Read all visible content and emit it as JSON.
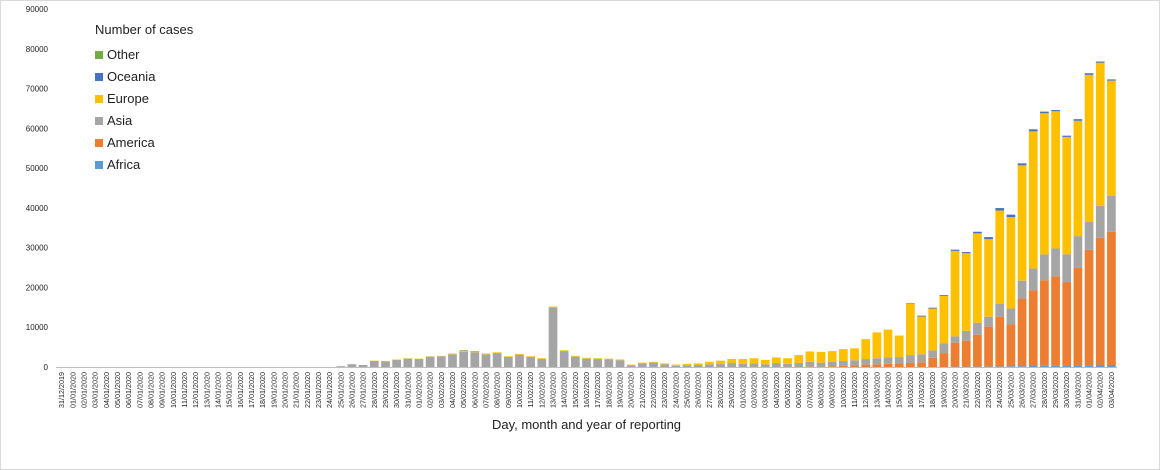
{
  "chart_data": {
    "type": "bar",
    "stacked": true,
    "title": "",
    "xlabel": "Day, month and year of reporting",
    "ylabel": "",
    "ylim": [
      0,
      90000
    ],
    "y_ticks": [
      0,
      10000,
      20000,
      30000,
      40000,
      50000,
      60000,
      70000,
      80000,
      90000
    ],
    "grid": false,
    "legend_title": "Number of cases",
    "legend_position": "top-left",
    "legend_order": [
      "Other",
      "Oceania",
      "Europe",
      "Asia",
      "America",
      "Africa"
    ],
    "categories": [
      "31/12/2019",
      "01/01/2020",
      "02/01/2020",
      "03/01/2020",
      "04/01/2020",
      "05/01/2020",
      "06/01/2020",
      "07/01/2020",
      "08/01/2020",
      "09/01/2020",
      "10/01/2020",
      "11/01/2020",
      "12/01/2020",
      "13/01/2020",
      "14/01/2020",
      "15/01/2020",
      "16/01/2020",
      "17/01/2020",
      "18/01/2020",
      "19/01/2020",
      "20/01/2020",
      "21/01/2020",
      "22/01/2020",
      "23/01/2020",
      "24/01/2020",
      "25/01/2020",
      "26/01/2020",
      "27/01/2020",
      "28/01/2020",
      "29/01/2020",
      "30/01/2020",
      "31/01/2020",
      "01/02/2020",
      "02/02/2020",
      "03/02/2020",
      "04/02/2020",
      "05/02/2020",
      "06/02/2020",
      "07/02/2020",
      "08/02/2020",
      "09/02/2020",
      "10/02/2020",
      "11/02/2020",
      "12/02/2020",
      "13/02/2020",
      "14/02/2020",
      "15/02/2020",
      "16/02/2020",
      "17/02/2020",
      "18/02/2020",
      "19/02/2020",
      "20/02/2020",
      "21/02/2020",
      "22/02/2020",
      "23/02/2020",
      "24/02/2020",
      "25/02/2020",
      "26/02/2020",
      "27/02/2020",
      "28/02/2020",
      "29/02/2020",
      "01/03/2020",
      "02/03/2020",
      "03/03/2020",
      "04/03/2020",
      "05/03/2020",
      "06/03/2020",
      "07/03/2020",
      "08/03/2020",
      "09/03/2020",
      "10/03/2020",
      "11/03/2020",
      "12/03/2020",
      "13/03/2020",
      "14/03/2020",
      "15/03/2020",
      "16/03/2020",
      "17/03/2020",
      "18/03/2020",
      "19/03/2020",
      "20/03/2020",
      "21/03/2020",
      "22/03/2020",
      "23/03/2020",
      "24/03/2020",
      "25/03/2020",
      "26/03/2020",
      "27/03/2020",
      "28/03/2020",
      "29/03/2020",
      "30/03/2020",
      "31/03/2020",
      "01/04/2020",
      "02/04/2020",
      "03/04/2020"
    ],
    "series": [
      {
        "name": "Africa",
        "color": "#5b9bd5",
        "values": [
          0,
          0,
          0,
          0,
          0,
          0,
          0,
          0,
          0,
          0,
          0,
          0,
          0,
          0,
          0,
          0,
          0,
          0,
          0,
          0,
          0,
          0,
          0,
          0,
          0,
          0,
          0,
          0,
          0,
          0,
          0,
          0,
          0,
          0,
          0,
          0,
          0,
          0,
          0,
          0,
          0,
          0,
          0,
          0,
          0,
          0,
          0,
          0,
          0,
          0,
          0,
          0,
          0,
          0,
          0,
          0,
          0,
          0,
          0,
          0,
          0,
          0,
          0,
          0,
          0,
          0,
          0,
          0,
          0,
          0,
          0,
          0,
          0,
          0,
          0,
          0,
          0,
          0,
          0,
          0,
          100,
          100,
          100,
          150,
          150,
          200,
          200,
          250,
          300,
          300,
          350,
          400,
          450,
          500,
          500
        ]
      },
      {
        "name": "America",
        "color": "#ed7d31",
        "values": [
          0,
          0,
          0,
          0,
          0,
          0,
          0,
          0,
          0,
          0,
          0,
          0,
          0,
          0,
          0,
          0,
          0,
          0,
          0,
          0,
          0,
          0,
          0,
          0,
          0,
          0,
          0,
          0,
          0,
          0,
          0,
          0,
          0,
          0,
          0,
          0,
          0,
          0,
          0,
          0,
          0,
          0,
          0,
          0,
          0,
          0,
          0,
          0,
          0,
          0,
          0,
          0,
          0,
          0,
          0,
          0,
          0,
          0,
          0,
          0,
          0,
          0,
          0,
          0,
          0,
          0,
          0,
          100,
          100,
          200,
          300,
          400,
          600,
          700,
          800,
          900,
          1000,
          1200,
          2300,
          3500,
          6000,
          6500,
          8000,
          10000,
          12500,
          10500,
          17000,
          19000,
          21500,
          22500,
          21000,
          24500,
          29000,
          32000,
          33500
        ]
      },
      {
        "name": "Asia",
        "color": "#a5a5a5",
        "values": [
          0,
          0,
          0,
          0,
          0,
          0,
          0,
          0,
          0,
          0,
          0,
          0,
          0,
          0,
          0,
          0,
          0,
          0,
          0,
          0,
          0,
          0,
          0,
          0,
          0,
          200,
          700,
          500,
          1500,
          1400,
          1800,
          2100,
          2000,
          2600,
          2700,
          3200,
          3800,
          3700,
          3200,
          3500,
          2500,
          3100,
          2500,
          2000,
          15000,
          4000,
          2600,
          2100,
          2000,
          1900,
          1700,
          400,
          900,
          1100,
          700,
          300,
          400,
          500,
          700,
          800,
          1000,
          800,
          900,
          700,
          1000,
          800,
          1000,
          1200,
          1000,
          1100,
          1200,
          1300,
          1400,
          1500,
          1600,
          1600,
          2000,
          2000,
          1900,
          2400,
          1600,
          2500,
          3000,
          2500,
          3200,
          4000,
          4500,
          5500,
          6500,
          7000,
          7000,
          8000,
          7000,
          8000,
          9000
        ]
      },
      {
        "name": "Europe",
        "color": "#ffc000",
        "values": [
          0,
          0,
          0,
          0,
          0,
          0,
          0,
          0,
          0,
          0,
          0,
          0,
          0,
          0,
          0,
          0,
          0,
          0,
          0,
          0,
          0,
          0,
          0,
          0,
          0,
          0,
          0,
          0,
          100,
          100,
          100,
          100,
          100,
          100,
          100,
          200,
          200,
          200,
          200,
          200,
          200,
          200,
          200,
          200,
          200,
          200,
          200,
          200,
          200,
          200,
          200,
          200,
          200,
          200,
          200,
          300,
          400,
          400,
          600,
          800,
          1000,
          1200,
          1300,
          1100,
          1400,
          1400,
          2000,
          2600,
          2700,
          2700,
          3000,
          3000,
          5000,
          6500,
          7000,
          5400,
          13000,
          9500,
          10500,
          12000,
          21500,
          19500,
          22500,
          19500,
          23500,
          23000,
          29000,
          34500,
          35500,
          34500,
          29500,
          29000,
          37000,
          36000,
          29000
        ]
      },
      {
        "name": "Oceania",
        "color": "#4472c4",
        "values": [
          0,
          0,
          0,
          0,
          0,
          0,
          0,
          0,
          0,
          0,
          0,
          0,
          0,
          0,
          0,
          0,
          0,
          0,
          0,
          0,
          0,
          0,
          0,
          0,
          0,
          0,
          0,
          0,
          0,
          0,
          0,
          0,
          0,
          0,
          0,
          0,
          0,
          0,
          0,
          0,
          0,
          0,
          0,
          0,
          0,
          0,
          0,
          0,
          0,
          0,
          0,
          0,
          0,
          0,
          0,
          0,
          0,
          0,
          0,
          0,
          0,
          0,
          0,
          0,
          0,
          0,
          0,
          0,
          0,
          0,
          0,
          0,
          0,
          0,
          0,
          0,
          100,
          200,
          200,
          200,
          300,
          300,
          400,
          500,
          600,
          600,
          500,
          500,
          400,
          300,
          300,
          400,
          400,
          300,
          300
        ]
      },
      {
        "name": "Other",
        "color": "#70ad47",
        "values": [
          0,
          0,
          0,
          0,
          0,
          0,
          0,
          0,
          0,
          0,
          0,
          0,
          0,
          0,
          0,
          0,
          0,
          0,
          0,
          0,
          0,
          0,
          0,
          0,
          0,
          0,
          0,
          0,
          0,
          0,
          0,
          0,
          0,
          0,
          0,
          0,
          200,
          100,
          0,
          0,
          0,
          0,
          0,
          0,
          0,
          0,
          0,
          0,
          0,
          0,
          0,
          0,
          0,
          0,
          0,
          0,
          0,
          0,
          0,
          0,
          0,
          0,
          0,
          0,
          0,
          0,
          0,
          0,
          0,
          0,
          0,
          0,
          0,
          0,
          0,
          0,
          0,
          0,
          0,
          0,
          0,
          0,
          0,
          0,
          0,
          0,
          0,
          0,
          0,
          0,
          0,
          0,
          0,
          0,
          0
        ]
      }
    ]
  }
}
